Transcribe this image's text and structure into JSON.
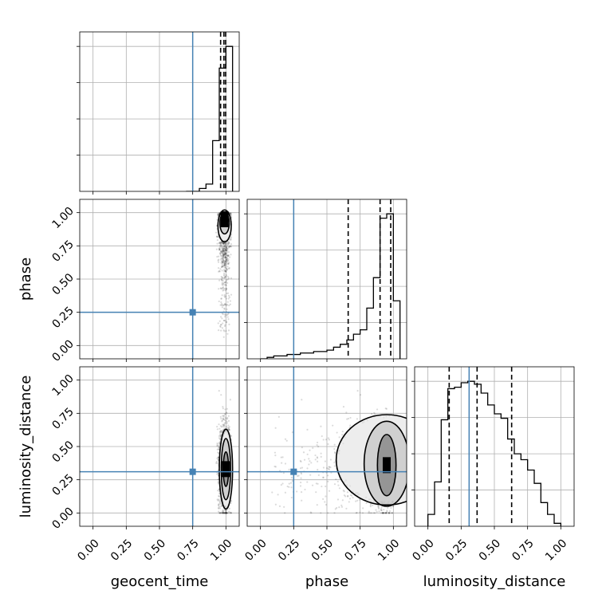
{
  "chart_data": {
    "type": "corner",
    "parameters": [
      "geocent_time",
      "phase",
      "luminosity_distance"
    ],
    "axis_label": {
      "geocent_time": "geocent_time",
      "phase": "phase",
      "luminosity_distance": "luminosity_distance"
    },
    "range": [
      -0.1,
      1.1
    ],
    "ticks": [
      "0.00",
      "0.25",
      "0.50",
      "0.75",
      "1.00"
    ],
    "tick_values": [
      0.0,
      0.25,
      0.5,
      0.75,
      1.0
    ],
    "grid": true,
    "truth_color": "#4682b4",
    "truths": {
      "geocent_time": 0.75,
      "phase": 0.25,
      "luminosity_distance": 0.31
    },
    "histograms": {
      "geocent_time": {
        "bin_edges": [
          0.7,
          0.75,
          0.8,
          0.85,
          0.9,
          0.95,
          1.0,
          1.05
        ],
        "counts": [
          0.0,
          0.0,
          0.02,
          0.05,
          0.35,
          0.85,
          1.0
        ],
        "quantiles": [
          0.96,
          0.985,
          0.998
        ]
      },
      "phase": {
        "bin_edges": [
          0.0,
          0.05,
          0.1,
          0.15,
          0.2,
          0.25,
          0.3,
          0.35,
          0.4,
          0.45,
          0.5,
          0.55,
          0.6,
          0.65,
          0.7,
          0.75,
          0.8,
          0.85,
          0.9,
          0.95,
          1.0,
          1.05
        ],
        "counts": [
          0.0,
          0.01,
          0.02,
          0.02,
          0.03,
          0.03,
          0.04,
          0.04,
          0.05,
          0.05,
          0.06,
          0.08,
          0.1,
          0.13,
          0.17,
          0.2,
          0.35,
          0.56,
          0.97,
          1.0,
          0.4
        ],
        "quantiles": [
          0.66,
          0.9,
          0.98
        ]
      },
      "luminosity_distance": {
        "bin_edges": [
          0.0,
          0.05,
          0.1,
          0.15,
          0.2,
          0.25,
          0.3,
          0.35,
          0.4,
          0.45,
          0.5,
          0.55,
          0.6,
          0.65,
          0.7,
          0.75,
          0.8,
          0.85,
          0.9,
          0.95,
          1.0
        ],
        "counts": [
          0.08,
          0.3,
          0.72,
          0.93,
          0.94,
          0.97,
          0.98,
          0.96,
          0.9,
          0.82,
          0.76,
          0.73,
          0.59,
          0.49,
          0.45,
          0.38,
          0.29,
          0.16,
          0.08,
          0.02
        ],
        "quantiles": [
          0.16,
          0.37,
          0.63
        ]
      }
    },
    "scatter_marginals": {
      "geocent_time": {
        "mean": 0.99,
        "sd": 0.02
      },
      "phase": {
        "bins": [
          0.0,
          0.05,
          0.1,
          0.15,
          0.2,
          0.25,
          0.3,
          0.35,
          0.4,
          0.45,
          0.5,
          0.55,
          0.6,
          0.65,
          0.7,
          0.75,
          0.8,
          0.85,
          0.9,
          0.95,
          1.0
        ],
        "weights": [
          0.0,
          0.01,
          0.02,
          0.02,
          0.03,
          0.03,
          0.04,
          0.04,
          0.05,
          0.05,
          0.06,
          0.08,
          0.1,
          0.13,
          0.17,
          0.2,
          0.35,
          0.56,
          0.97,
          1.0
        ]
      },
      "luminosity_distance": {
        "mean": 0.34,
        "sd": 0.16
      }
    },
    "contours": {
      "phase_vs_geocent_time": [
        {
          "cx": 0.99,
          "cy": 0.9,
          "rx": 0.05,
          "ry": 0.12
        },
        {
          "cx": 0.99,
          "cy": 0.92,
          "rx": 0.035,
          "ry": 0.08
        },
        {
          "cx": 0.99,
          "cy": 0.95,
          "rx": 0.02,
          "ry": 0.03
        }
      ],
      "luminosity_distance_vs_geocent_time": [
        {
          "cx": 1.0,
          "cy": 0.33,
          "rx": 0.05,
          "ry": 0.3
        },
        {
          "cx": 1.0,
          "cy": 0.33,
          "rx": 0.035,
          "ry": 0.23
        },
        {
          "cx": 1.0,
          "cy": 0.33,
          "rx": 0.02,
          "ry": 0.13
        }
      ],
      "luminosity_distance_vs_phase": [
        {
          "cx": 0.95,
          "cy": 0.4,
          "rx": 0.38,
          "ry": 0.34
        },
        {
          "cx": 0.95,
          "cy": 0.37,
          "rx": 0.17,
          "ry": 0.32
        },
        {
          "cx": 0.95,
          "cy": 0.36,
          "rx": 0.07,
          "ry": 0.23
        }
      ]
    },
    "density_peaks": {
      "phase_vs_geocent_time": {
        "x": 0.99,
        "y": 0.95
      },
      "luminosity_distance_vs_geocent_time": {
        "x": 1.0,
        "y": 0.33
      },
      "luminosity_distance_vs_phase": {
        "x": 0.95,
        "y": 0.36
      }
    }
  }
}
